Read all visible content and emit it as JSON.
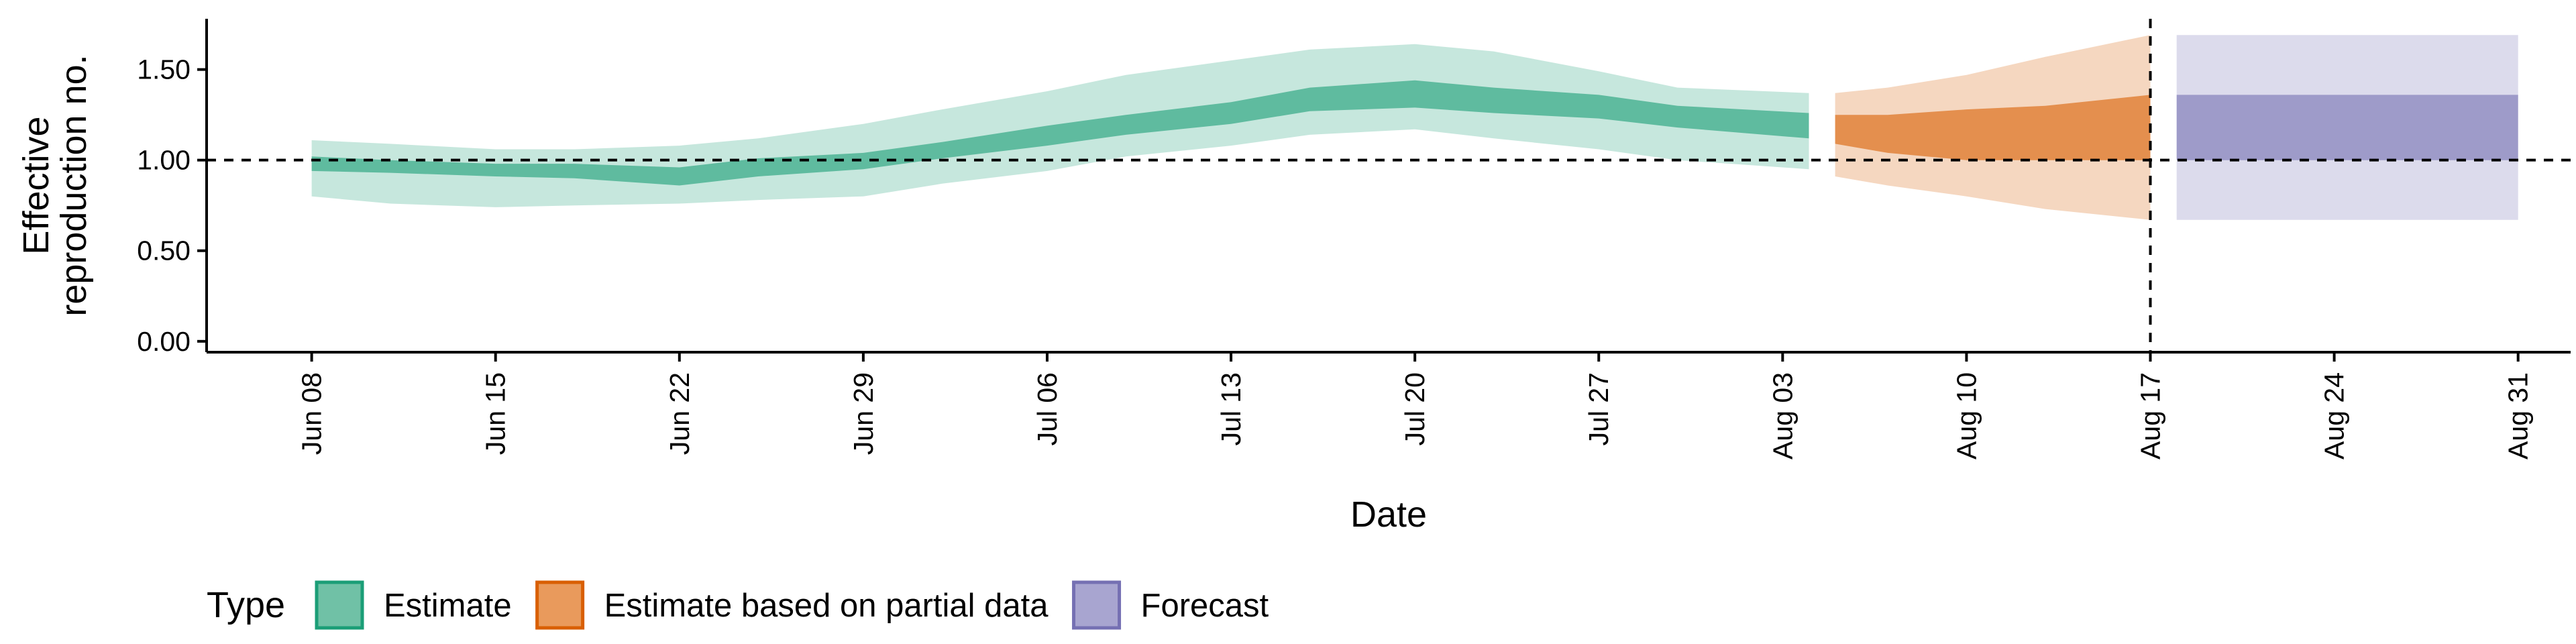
{
  "chart_data": {
    "type": "area",
    "xlabel": "Date",
    "ylabel_lines": [
      "Effective",
      "reproduction no."
    ],
    "x_ticks": [
      "Jun 08",
      "Jun 15",
      "Jun 22",
      "Jun 29",
      "Jul 06",
      "Jul 13",
      "Jul 20",
      "Jul 27",
      "Aug 03",
      "Aug 10",
      "Aug 17",
      "Aug 24",
      "Aug 31"
    ],
    "y_ticks": [
      "0.00",
      "0.50",
      "1.00",
      "1.50"
    ],
    "ylim": [
      -0.06,
      1.78
    ],
    "xlim": [
      "2020-06-04",
      "2020-09-02"
    ],
    "reference_lines": {
      "horizontal_y": 1.0,
      "vertical_date": "2020-08-17"
    },
    "legend": {
      "title": "Type",
      "position": "bottom-left",
      "items": [
        {
          "label": "Estimate",
          "fill": "#70C1A6",
          "border": "#1B9E77"
        },
        {
          "label": "Estimate based on partial data",
          "fill": "#E99A5C",
          "border": "#D95F02"
        },
        {
          "label": "Forecast",
          "fill": "#A8A5D0",
          "border": "#7570B3"
        }
      ]
    },
    "series": [
      {
        "name": "Estimate",
        "color": "#1B9E77",
        "x": [
          "2020-06-08",
          "2020-06-11",
          "2020-06-15",
          "2020-06-18",
          "2020-06-22",
          "2020-06-25",
          "2020-06-29",
          "2020-07-02",
          "2020-07-06",
          "2020-07-09",
          "2020-07-13",
          "2020-07-16",
          "2020-07-20",
          "2020-07-23",
          "2020-07-27",
          "2020-07-30",
          "2020-08-04"
        ],
        "inner_low": [
          0.94,
          0.93,
          0.91,
          0.9,
          0.86,
          0.91,
          0.95,
          1.01,
          1.08,
          1.14,
          1.2,
          1.27,
          1.29,
          1.26,
          1.23,
          1.18,
          1.12
        ],
        "inner_high": [
          1.02,
          1.0,
          0.98,
          0.98,
          0.96,
          1.01,
          1.04,
          1.1,
          1.19,
          1.25,
          1.32,
          1.4,
          1.44,
          1.4,
          1.36,
          1.3,
          1.26
        ],
        "outer_low": [
          0.8,
          0.76,
          0.74,
          0.75,
          0.76,
          0.78,
          0.8,
          0.87,
          0.94,
          1.02,
          1.08,
          1.14,
          1.17,
          1.12,
          1.06,
          1.0,
          0.95
        ],
        "outer_high": [
          1.11,
          1.09,
          1.06,
          1.06,
          1.08,
          1.12,
          1.2,
          1.28,
          1.38,
          1.47,
          1.55,
          1.61,
          1.64,
          1.6,
          1.49,
          1.4,
          1.37
        ]
      },
      {
        "name": "Estimate based on partial data",
        "color": "#D95F02",
        "x": [
          "2020-08-05",
          "2020-08-07",
          "2020-08-10",
          "2020-08-13",
          "2020-08-17"
        ],
        "inner_low": [
          1.09,
          1.04,
          1.0,
          1.0,
          1.0
        ],
        "inner_high": [
          1.25,
          1.25,
          1.28,
          1.3,
          1.36
        ],
        "outer_low": [
          0.91,
          0.86,
          0.8,
          0.73,
          0.67
        ],
        "outer_high": [
          1.37,
          1.4,
          1.47,
          1.57,
          1.69
        ]
      },
      {
        "name": "Forecast",
        "color": "#7570B3",
        "x": [
          "2020-08-18",
          "2020-08-31"
        ],
        "inner_low": [
          1.0,
          1.0
        ],
        "inner_high": [
          1.36,
          1.36
        ],
        "outer_low": [
          0.67,
          0.67
        ],
        "outer_high": [
          1.69,
          1.69
        ]
      }
    ]
  }
}
